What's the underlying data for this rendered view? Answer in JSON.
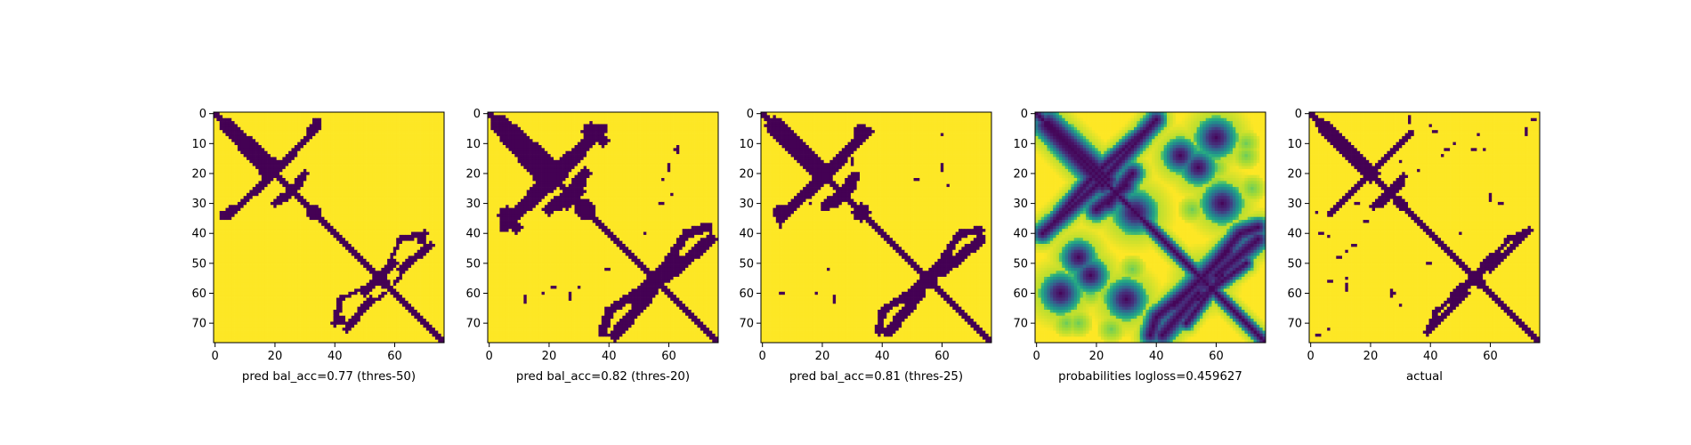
{
  "colors": {
    "low": "#440154",
    "high": "#fde725",
    "colormap": "viridis"
  },
  "chart_data": [
    {
      "type": "heatmap",
      "title": "",
      "xlabel": "pred bal_acc=0.77 (thres-50)",
      "ylabel": "",
      "size": 77,
      "xlim": [
        0,
        76
      ],
      "ylim": [
        76,
        0
      ],
      "x_ticks": [
        0,
        20,
        40,
        60
      ],
      "y_ticks": [
        0,
        10,
        20,
        30,
        40,
        50,
        60,
        70
      ],
      "mode": "binary",
      "value_range": [
        0,
        1
      ],
      "diagonal_band_halfwidth": 1.2,
      "features": [
        {
          "kind": "segment",
          "from": [
            3,
            4
          ],
          "to": [
            18,
            21
          ],
          "width": 1.6
        },
        {
          "kind": "segment",
          "from": [
            21,
            17
          ],
          "to": [
            32,
            6
          ],
          "width": 0.7
        },
        {
          "kind": "segment",
          "from": [
            32,
            6
          ],
          "to": [
            34,
            3
          ],
          "width": 1.6
        },
        {
          "kind": "segment",
          "from": [
            5,
            34
          ],
          "to": [
            18,
            22
          ],
          "width": 1.0
        },
        {
          "kind": "segment",
          "from": [
            24,
            28
          ],
          "to": [
            30,
            20
          ],
          "width": 1.4
        },
        {
          "kind": "blob",
          "center": [
            33,
            33
          ],
          "r": 2.5
        },
        {
          "kind": "segment",
          "from": [
            50,
            60
          ],
          "to": [
            57,
            52
          ],
          "width": 1.3
        },
        {
          "kind": "segment",
          "from": [
            57,
            52
          ],
          "to": [
            62,
            42
          ],
          "width": 0.8
        },
        {
          "kind": "segment",
          "from": [
            62,
            42
          ],
          "to": [
            70,
            40
          ],
          "width": 1.2
        },
        {
          "kind": "segment",
          "from": [
            60,
            57
          ],
          "to": [
            66,
            48
          ],
          "width": 0.6
        },
        {
          "kind": "segment",
          "from": [
            44,
            72
          ],
          "to": [
            52,
            62
          ],
          "width": 1.4
        },
        {
          "kind": "blob",
          "center": [
            42,
            69
          ],
          "r": 1.8
        },
        {
          "kind": "blob",
          "center": [
            56,
            56
          ],
          "r": 2.0
        }
      ]
    },
    {
      "type": "heatmap",
      "title": "",
      "xlabel": "pred bal_acc=0.82 (thres-20)",
      "ylabel": "",
      "size": 77,
      "xlim": [
        0,
        76
      ],
      "ylim": [
        76,
        0
      ],
      "x_ticks": [
        0,
        20,
        40,
        60
      ],
      "y_ticks": [
        0,
        10,
        20,
        30,
        40,
        50,
        60,
        70
      ],
      "mode": "binary",
      "value_range": [
        0,
        1
      ],
      "diagonal_band_halfwidth": 1.8,
      "features": [
        {
          "kind": "segment",
          "from": [
            3,
            4
          ],
          "to": [
            20,
            24
          ],
          "width": 2.5
        },
        {
          "kind": "segment",
          "from": [
            22,
            18
          ],
          "to": [
            36,
            6
          ],
          "width": 1.2
        },
        {
          "kind": "blob",
          "center": [
            34,
            6
          ],
          "r": 3.0
        },
        {
          "kind": "segment",
          "from": [
            5,
            38
          ],
          "to": [
            20,
            24
          ],
          "width": 1.8
        },
        {
          "kind": "segment",
          "from": [
            24,
            30
          ],
          "to": [
            32,
            20
          ],
          "width": 2.0
        },
        {
          "kind": "blob",
          "center": [
            32,
            32
          ],
          "r": 3.4
        },
        {
          "kind": "blob",
          "center": [
            9,
            38
          ],
          "r": 2.2
        },
        {
          "kind": "segment",
          "from": [
            48,
            62
          ],
          "to": [
            58,
            52
          ],
          "width": 2.0
        },
        {
          "kind": "segment",
          "from": [
            58,
            52
          ],
          "to": [
            66,
            40
          ],
          "width": 1.4
        },
        {
          "kind": "segment",
          "from": [
            66,
            40
          ],
          "to": [
            73,
            38
          ],
          "width": 1.6
        },
        {
          "kind": "segment",
          "from": [
            42,
            74
          ],
          "to": [
            54,
            60
          ],
          "width": 2.0
        },
        {
          "kind": "blob",
          "center": [
            56,
            56
          ],
          "r": 3.0
        },
        {
          "kind": "blob",
          "center": [
            26,
            30
          ],
          "r": 2.0
        }
      ],
      "specks": [
        [
          12,
          62
        ],
        [
          27,
          61
        ],
        [
          40,
          52
        ],
        [
          58,
          30
        ],
        [
          16,
          22
        ],
        [
          63,
          12
        ],
        [
          60,
          18
        ],
        [
          22,
          58
        ],
        [
          72,
          45
        ]
      ]
    },
    {
      "type": "heatmap",
      "title": "",
      "xlabel": "pred bal_acc=0.81 (thres-25)",
      "ylabel": "",
      "size": 77,
      "xlim": [
        0,
        76
      ],
      "ylim": [
        76,
        0
      ],
      "x_ticks": [
        0,
        20,
        40,
        60
      ],
      "y_ticks": [
        0,
        10,
        20,
        30,
        40,
        50,
        60,
        70
      ],
      "mode": "binary",
      "value_range": [
        0,
        1
      ],
      "diagonal_band_halfwidth": 1.6,
      "features": [
        {
          "kind": "segment",
          "from": [
            3,
            4
          ],
          "to": [
            20,
            22
          ],
          "width": 2.2
        },
        {
          "kind": "segment",
          "from": [
            22,
            18
          ],
          "to": [
            34,
            6
          ],
          "width": 1.0
        },
        {
          "kind": "blob",
          "center": [
            33,
            6
          ],
          "r": 2.4
        },
        {
          "kind": "segment",
          "from": [
            6,
            35
          ],
          "to": [
            18,
            24
          ],
          "width": 1.6
        },
        {
          "kind": "segment",
          "from": [
            24,
            30
          ],
          "to": [
            31,
            21
          ],
          "width": 1.8
        },
        {
          "kind": "blob",
          "center": [
            33,
            33
          ],
          "r": 3.0
        },
        {
          "kind": "segment",
          "from": [
            48,
            62
          ],
          "to": [
            58,
            52
          ],
          "width": 1.8
        },
        {
          "kind": "segment",
          "from": [
            58,
            52
          ],
          "to": [
            66,
            40
          ],
          "width": 1.2
        },
        {
          "kind": "segment",
          "from": [
            66,
            40
          ],
          "to": [
            73,
            39
          ],
          "width": 1.4
        },
        {
          "kind": "segment",
          "from": [
            42,
            73
          ],
          "to": [
            53,
            60
          ],
          "width": 1.8
        },
        {
          "kind": "blob",
          "center": [
            56,
            56
          ],
          "r": 2.8
        }
      ],
      "specks": [
        [
          6,
          37
        ],
        [
          7,
          60
        ],
        [
          24,
          62
        ],
        [
          52,
          22
        ],
        [
          30,
          16
        ],
        [
          60,
          18
        ]
      ]
    },
    {
      "type": "heatmap",
      "title": "",
      "xlabel": "probabilities logloss=0.459627",
      "ylabel": "",
      "size": 77,
      "xlim": [
        0,
        76
      ],
      "ylim": [
        76,
        0
      ],
      "x_ticks": [
        0,
        20,
        40,
        60
      ],
      "y_ticks": [
        0,
        10,
        20,
        30,
        40,
        50,
        60,
        70
      ],
      "mode": "continuous",
      "value_range": [
        0,
        1
      ],
      "diagonal_band_halfwidth": 1.6,
      "features": [
        {
          "kind": "segment",
          "from": [
            3,
            4
          ],
          "to": [
            22,
            24
          ],
          "width": 2.0
        },
        {
          "kind": "segment",
          "from": [
            22,
            18
          ],
          "to": [
            36,
            6
          ],
          "width": 1.4
        },
        {
          "kind": "segment",
          "from": [
            2,
            40
          ],
          "to": [
            20,
            24
          ],
          "width": 1.6
        },
        {
          "kind": "segment",
          "from": [
            24,
            30
          ],
          "to": [
            32,
            20
          ],
          "width": 1.8
        },
        {
          "kind": "blob",
          "center": [
            33,
            33
          ],
          "r": 3.2
        },
        {
          "kind": "segment",
          "from": [
            46,
            64
          ],
          "to": [
            58,
            52
          ],
          "width": 1.8
        },
        {
          "kind": "segment",
          "from": [
            58,
            52
          ],
          "to": [
            68,
            40
          ],
          "width": 1.6
        },
        {
          "kind": "segment",
          "from": [
            68,
            40
          ],
          "to": [
            74,
            38
          ],
          "width": 1.6
        },
        {
          "kind": "segment",
          "from": [
            42,
            74
          ],
          "to": [
            54,
            60
          ],
          "width": 1.8
        },
        {
          "kind": "segment",
          "from": [
            50,
            70
          ],
          "to": [
            62,
            54
          ],
          "width": 1.2
        },
        {
          "kind": "blob",
          "center": [
            56,
            56
          ],
          "r": 3.0
        },
        {
          "kind": "blob",
          "center": [
            8,
            60
          ],
          "r": 3.0
        },
        {
          "kind": "blob",
          "center": [
            30,
            62
          ],
          "r": 3.0
        },
        {
          "kind": "blob",
          "center": [
            54,
            18
          ],
          "r": 2.6
        },
        {
          "kind": "blob",
          "center": [
            14,
            48
          ],
          "r": 2.6
        }
      ],
      "haze": [
        [
          48,
          10
        ],
        [
          60,
          24
        ],
        [
          52,
          32
        ],
        [
          18,
          60
        ],
        [
          70,
          14
        ],
        [
          10,
          70
        ],
        [
          25,
          72
        ],
        [
          62,
          8
        ]
      ]
    },
    {
      "type": "heatmap",
      "title": "",
      "xlabel": "actual",
      "ylabel": "",
      "size": 77,
      "xlim": [
        0,
        76
      ],
      "ylim": [
        76,
        0
      ],
      "x_ticks": [
        0,
        20,
        40,
        60
      ],
      "y_ticks": [
        0,
        10,
        20,
        30,
        40,
        50,
        60,
        70
      ],
      "mode": "binary",
      "value_range": [
        0,
        1
      ],
      "diagonal_band_halfwidth": 1.2,
      "features": [
        {
          "kind": "segment",
          "from": [
            3,
            4
          ],
          "to": [
            20,
            22
          ],
          "width": 1.4
        },
        {
          "kind": "segment",
          "from": [
            22,
            18
          ],
          "to": [
            34,
            6
          ],
          "width": 0.9
        },
        {
          "kind": "segment",
          "from": [
            24,
            30
          ],
          "to": [
            31,
            21
          ],
          "width": 1.4
        },
        {
          "kind": "segment",
          "from": [
            48,
            60
          ],
          "to": [
            58,
            52
          ],
          "width": 1.2
        },
        {
          "kind": "segment",
          "from": [
            58,
            52
          ],
          "to": [
            66,
            42
          ],
          "width": 0.8
        },
        {
          "kind": "segment",
          "from": [
            66,
            42
          ],
          "to": [
            73,
            39
          ],
          "width": 1.0
        },
        {
          "kind": "segment",
          "from": [
            40,
            72
          ],
          "to": [
            52,
            60
          ],
          "width": 1.2
        },
        {
          "kind": "blob",
          "center": [
            30,
            30
          ],
          "r": 2.0
        },
        {
          "kind": "blob",
          "center": [
            56,
            56
          ],
          "r": 2.0
        }
      ],
      "specks": [
        [
          4,
          40
        ],
        [
          10,
          48
        ],
        [
          12,
          58
        ],
        [
          27,
          60
        ],
        [
          19,
          36
        ],
        [
          16,
          30
        ],
        [
          46,
          12
        ],
        [
          55,
          12
        ],
        [
          60,
          28
        ],
        [
          64,
          30
        ],
        [
          72,
          6
        ],
        [
          74,
          2
        ],
        [
          41,
          6
        ],
        [
          33,
          2
        ],
        [
          2,
          74
        ],
        [
          40,
          50
        ],
        [
          7,
          56
        ],
        [
          14,
          44
        ]
      ]
    }
  ]
}
